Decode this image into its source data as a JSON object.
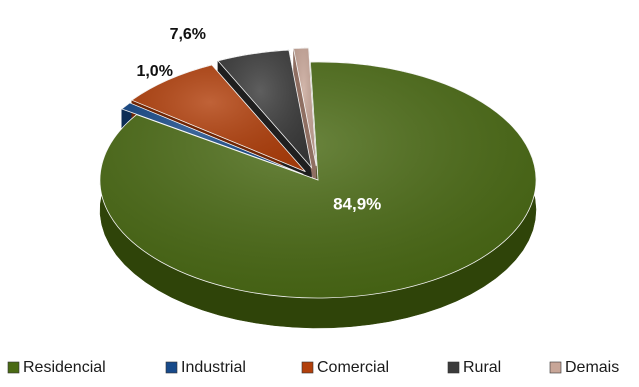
{
  "chart_data": {
    "type": "pie",
    "title": "",
    "unit": "%",
    "slices": [
      {
        "name": "Residencial",
        "value": 84.9,
        "label": "84,9%",
        "color": "#4a6a14",
        "side_color": "#2f4409"
      },
      {
        "name": "Industrial",
        "value": 1.0,
        "label": "1,0%",
        "color": "#174a8a",
        "side_color": "#0c2d56"
      },
      {
        "name": "Comercial",
        "value": 7.6,
        "label": "7,6%",
        "color": "#b2400c",
        "side_color": "#6f2605"
      },
      {
        "name": "Rural",
        "value": 5.4,
        "label": "5,4%",
        "color": "#3b3b3b",
        "side_color": "#1f1f1f"
      },
      {
        "name": "Demais",
        "value": 1.1,
        "label": "1,1%",
        "color": "#c8a698",
        "side_color": "#8f6f62"
      }
    ],
    "exploded": true,
    "legend": {
      "position": "bottom"
    }
  }
}
